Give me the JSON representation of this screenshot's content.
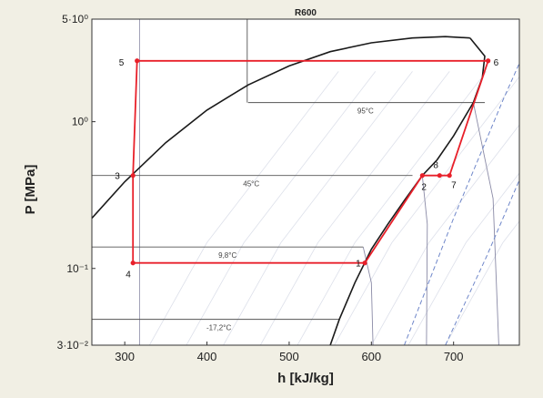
{
  "chart_data": {
    "type": "line",
    "title": "R600",
    "xlabel": "h [kJ/kg]",
    "ylabel": "P [MPa]",
    "xlim": [
      260,
      780
    ],
    "ylim": [
      0.03,
      5
    ],
    "yscale": "log",
    "grid": false,
    "xticks": [
      300,
      400,
      500,
      600,
      700
    ],
    "yticks": [
      {
        "value": 5,
        "label": "5·10⁰"
      },
      {
        "value": 1,
        "label": "10⁰"
      },
      {
        "value": 0.1,
        "label": "10⁻¹"
      },
      {
        "value": 0.03,
        "label": "3·10⁻²"
      }
    ],
    "isotherms": [
      {
        "label": "95°C",
        "P": 1.35,
        "h_start": 450,
        "h_end": 738
      },
      {
        "label": "45°C",
        "P": 0.43,
        "h_start": 260,
        "h_end": 650
      },
      {
        "label": "9,8°C",
        "P": 0.14,
        "h_start": 260,
        "h_end": 590
      },
      {
        "label": "-17,2°C",
        "P": 0.045,
        "h_start": 260,
        "h_end": 561
      }
    ],
    "cycle": {
      "color": "#e8202a",
      "points": [
        {
          "label": "1",
          "h": 592,
          "P": 0.109
        },
        {
          "label": "2",
          "h": 662,
          "P": 0.43
        },
        {
          "label": "8",
          "h": 683,
          "P": 0.43
        },
        {
          "label": "7",
          "h": 695,
          "P": 0.43
        },
        {
          "label": "6",
          "h": 742,
          "P": 2.6
        },
        {
          "label": "5",
          "h": 315,
          "P": 2.6
        },
        {
          "label": "3",
          "h": 310,
          "P": 0.43
        },
        {
          "label": "4",
          "h": 310,
          "P": 0.109
        }
      ]
    },
    "saturation_dome": {
      "liquid": [
        [
          260,
          0.22
        ],
        [
          300,
          0.39
        ],
        [
          350,
          0.72
        ],
        [
          400,
          1.2
        ],
        [
          450,
          1.78
        ],
        [
          500,
          2.4
        ],
        [
          550,
          3.0
        ],
        [
          600,
          3.45
        ],
        [
          650,
          3.72
        ],
        [
          690,
          3.8
        ],
        [
          720,
          3.72
        ]
      ],
      "vapor": [
        [
          720,
          3.72
        ],
        [
          738,
          2.8
        ],
        [
          735,
          2.0
        ],
        [
          724,
          1.35
        ],
        [
          700,
          0.8
        ],
        [
          680,
          0.55
        ],
        [
          662,
          0.43
        ],
        [
          640,
          0.29
        ],
        [
          620,
          0.2
        ],
        [
          600,
          0.135
        ],
        [
          580,
          0.08
        ],
        [
          561,
          0.045
        ],
        [
          550,
          0.03
        ]
      ]
    },
    "isentropes": [
      [
        [
          640,
          0.03
        ],
        [
          700,
          0.22
        ],
        [
          760,
          1.4
        ],
        [
          780,
          2.5
        ]
      ],
      [
        [
          690,
          0.03
        ],
        [
          740,
          0.12
        ],
        [
          780,
          0.4
        ]
      ]
    ]
  }
}
